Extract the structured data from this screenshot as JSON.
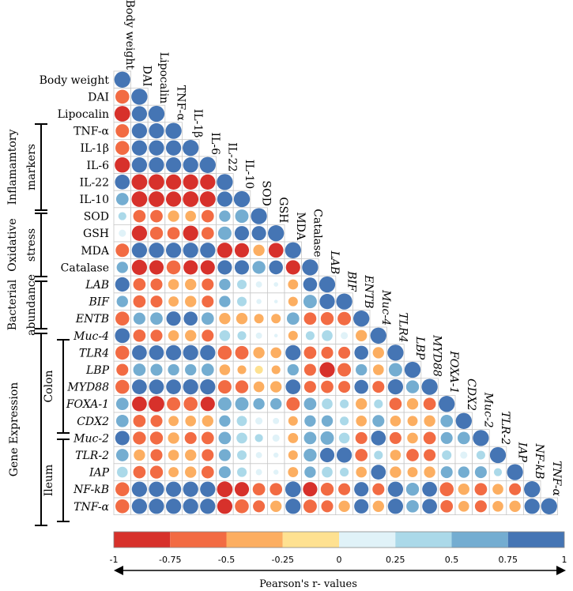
{
  "chart_data": {
    "type": "heatmap",
    "variables": [
      "Body weight",
      "DAI",
      "Lipocalin",
      "TNF-α",
      "IL-1β",
      "IL-6",
      "IL-22",
      "IL-10",
      "SOD",
      "GSH",
      "MDA",
      "Catalase",
      "LAB",
      "BIF",
      "ENTB",
      "Muc-4",
      "TLR4",
      "LBP",
      "MYD88",
      "FOXA-1",
      "CDX2",
      "Muc-2",
      "TLR-2",
      "IAP",
      "NF-kB",
      "TNF-α"
    ],
    "column_labels": [
      "Body weight",
      "DAI",
      "Lipocalin",
      "TNF-α",
      "IL-1β",
      "IL-6",
      "IL-22",
      "IL-10",
      "SOD",
      "GSH",
      "MDA",
      "Catalase",
      "LAB",
      "BIF",
      "ENTB",
      "Muc-4",
      "TLR4",
      "LBP",
      "MYD88",
      "FOXA-1",
      "CDX2",
      "Muc-2",
      "TLR-2",
      "IAP",
      "NF-kB",
      "TNF-α"
    ],
    "italic_from_index": 12,
    "correlations": [
      [
        1
      ],
      [
        -0.75,
        1
      ],
      [
        -0.95,
        0.9,
        1
      ],
      [
        -0.7,
        0.9,
        0.9,
        1
      ],
      [
        -0.75,
        0.9,
        0.9,
        0.9,
        1
      ],
      [
        -0.9,
        0.9,
        0.9,
        0.9,
        0.9,
        1
      ],
      [
        0.85,
        -0.95,
        -0.95,
        -0.9,
        -0.9,
        -0.9,
        1
      ],
      [
        0.6,
        -0.95,
        -0.95,
        -0.9,
        -0.95,
        -0.95,
        0.9,
        1
      ],
      [
        0.25,
        -0.6,
        -0.6,
        -0.5,
        -0.45,
        -0.6,
        0.5,
        0.7,
        1
      ],
      [
        0.2,
        -0.9,
        -0.65,
        -0.6,
        -0.9,
        -0.6,
        0.7,
        0.8,
        0.8,
        1
      ],
      [
        -0.7,
        0.9,
        0.9,
        0.9,
        0.9,
        0.9,
        -0.9,
        -0.8,
        -0.5,
        -0.85,
        1
      ],
      [
        0.5,
        -0.9,
        -0.8,
        -0.75,
        -0.8,
        -0.8,
        0.8,
        0.8,
        0.65,
        0.75,
        -0.8,
        1
      ],
      [
        0.8,
        -0.6,
        -0.55,
        -0.45,
        -0.5,
        -0.55,
        0.5,
        0.35,
        0.15,
        0.08,
        -0.4,
        0.75,
        1
      ],
      [
        0.5,
        -0.6,
        -0.55,
        -0.4,
        -0.5,
        -0.55,
        0.5,
        0.35,
        0.1,
        0.05,
        -0.35,
        0.7,
        0.9,
        1
      ],
      [
        -0.75,
        0.55,
        0.6,
        0.8,
        0.75,
        0.6,
        -0.5,
        -0.5,
        -0.35,
        -0.35,
        0.6,
        -0.6,
        -0.65,
        -0.7,
        1
      ],
      [
        0.85,
        -0.6,
        -0.55,
        -0.45,
        -0.5,
        -0.55,
        0.45,
        0.3,
        0.15,
        0.05,
        -0.35,
        0.3,
        0.45,
        0.2,
        -0.5,
        1
      ],
      [
        -0.75,
        0.85,
        0.85,
        0.9,
        0.9,
        0.9,
        -0.75,
        -0.7,
        -0.5,
        -0.45,
        0.9,
        -0.6,
        -0.55,
        -0.55,
        0.75,
        -0.5,
        1
      ],
      [
        -0.55,
        0.6,
        0.55,
        0.5,
        0.5,
        0.6,
        -0.45,
        -0.3,
        -0.25,
        -0.3,
        0.5,
        -0.55,
        -0.9,
        -0.7,
        0.5,
        -0.45,
        0.7,
        1
      ],
      [
        -0.75,
        0.85,
        0.85,
        0.85,
        0.9,
        0.9,
        -0.7,
        -0.65,
        -0.45,
        -0.5,
        0.85,
        -0.55,
        -0.6,
        -0.55,
        0.75,
        -0.55,
        0.9,
        0.65,
        1
      ],
      [
        0.6,
        -0.85,
        -0.95,
        -0.7,
        -0.75,
        -0.8,
        0.7,
        0.7,
        0.5,
        0.5,
        -0.7,
        0.6,
        0.45,
        0.3,
        -0.5,
        0.3,
        -0.6,
        -0.5,
        -0.6,
        1
      ],
      [
        0.6,
        -0.6,
        -0.55,
        -0.4,
        -0.45,
        -0.5,
        0.5,
        0.4,
        0.2,
        0.15,
        -0.35,
        0.5,
        0.5,
        0.3,
        -0.45,
        0.55,
        -0.45,
        -0.4,
        -0.5,
        0.6,
        1
      ],
      [
        0.8,
        -0.65,
        -0.65,
        -0.5,
        -0.55,
        -0.6,
        0.6,
        0.45,
        0.25,
        0.2,
        -0.4,
        0.6,
        0.7,
        0.45,
        -0.55,
        0.85,
        -0.55,
        -0.45,
        -0.6,
        0.55,
        0.6,
        1
      ],
      [
        0.6,
        -0.5,
        -0.55,
        -0.45,
        -0.5,
        -0.55,
        0.55,
        0.35,
        0.15,
        0.1,
        -0.35,
        0.65,
        0.8,
        0.9,
        -0.6,
        0.3,
        -0.45,
        -0.6,
        -0.55,
        0.35,
        0.2,
        0.3,
        1
      ],
      [
        0.45,
        -0.6,
        -0.65,
        -0.4,
        -0.5,
        -0.6,
        0.55,
        0.35,
        0.15,
        0.1,
        -0.4,
        0.5,
        0.45,
        0.3,
        -0.45,
        0.85,
        -0.5,
        -0.4,
        -0.5,
        0.55,
        0.5,
        0.55,
        0.25,
        1
      ],
      [
        -0.75,
        0.9,
        0.9,
        0.9,
        0.9,
        0.9,
        -0.95,
        -0.8,
        -0.6,
        -0.6,
        0.95,
        -0.8,
        -0.65,
        -0.55,
        0.8,
        -0.55,
        0.9,
        0.65,
        0.85,
        -0.75,
        -0.5,
        -0.6,
        -0.45,
        -0.55,
        1
      ],
      [
        -0.75,
        0.9,
        0.9,
        0.9,
        0.9,
        0.9,
        -0.9,
        -0.75,
        -0.55,
        -0.5,
        0.9,
        -0.7,
        -0.55,
        -0.5,
        0.8,
        -0.5,
        0.9,
        0.6,
        0.85,
        -0.6,
        -0.45,
        -0.55,
        -0.45,
        -0.5,
        0.9,
        1
      ]
    ],
    "groups": [
      {
        "label_lines": [
          "Inflamamtory",
          "markers"
        ]
      },
      {
        "label_lines": [
          "Oxidative",
          "stress"
        ]
      },
      {
        "label_lines": [
          "Bacterial",
          "abundance"
        ]
      },
      {
        "label_lines": [
          "Gene Expression"
        ]
      },
      {
        "label_lines": [
          "Colon"
        ]
      },
      {
        "label_lines": [
          "Ileum"
        ]
      }
    ],
    "colorbar": {
      "colors": [
        "#d7312b",
        "#f26b43",
        "#fcae61",
        "#fee191",
        "#e0f2f8",
        "#abd9e9",
        "#74add1",
        "#4575b4"
      ],
      "ticks": [
        "-1",
        "-0.75",
        "-0.5",
        "-0.25",
        "0",
        "0.25",
        "0.5",
        "0.75",
        "1"
      ],
      "range": [
        -1,
        1
      ]
    },
    "xlabel": "Pearson's r- values"
  }
}
